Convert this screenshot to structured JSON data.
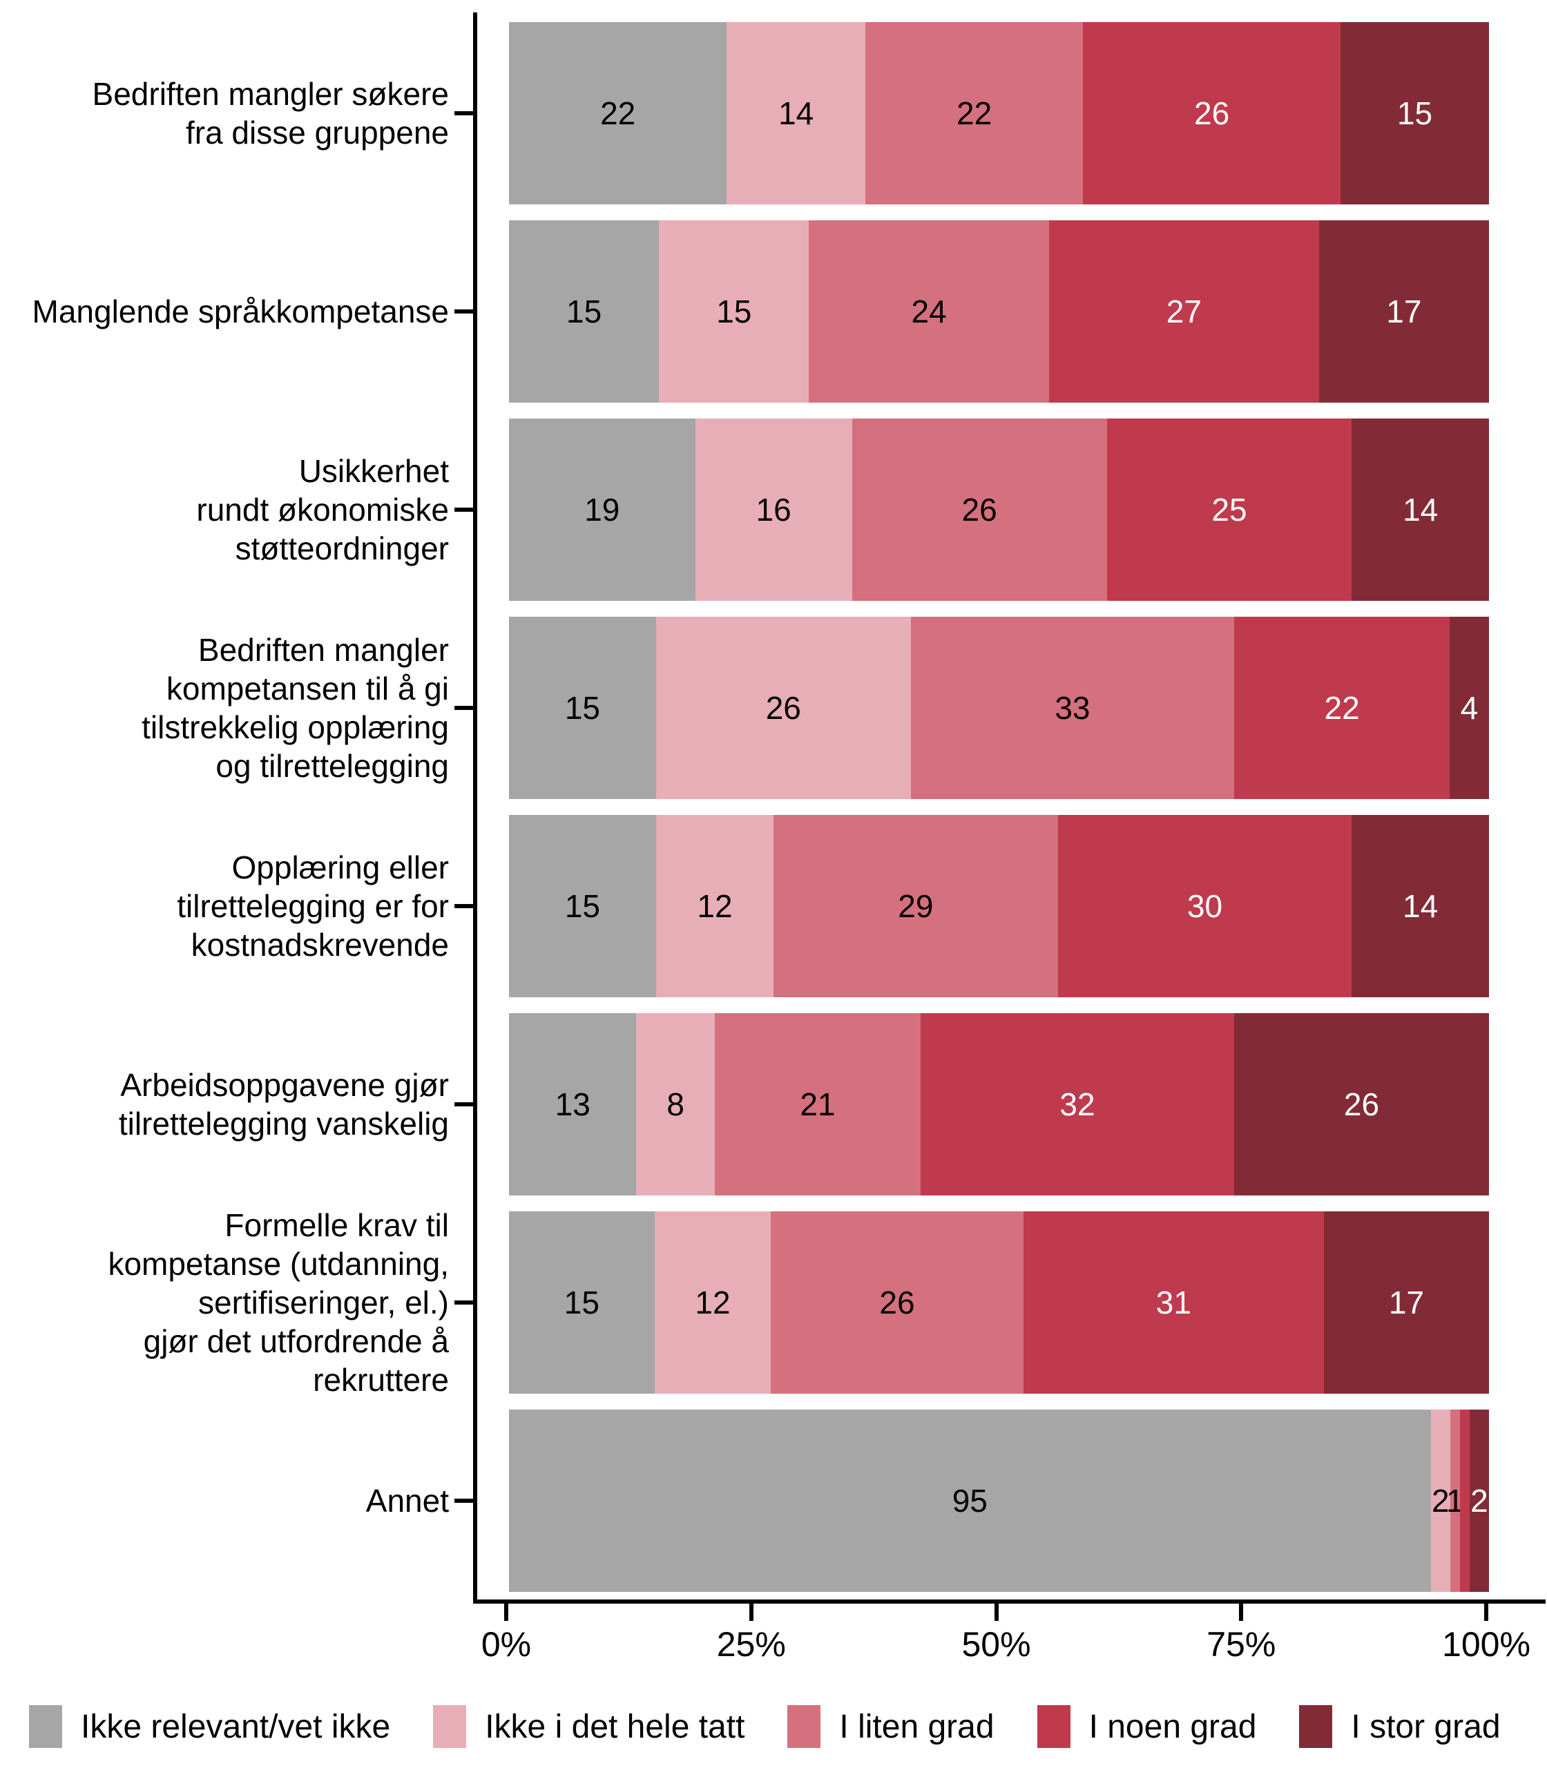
{
  "chart_data": {
    "type": "bar",
    "orientation": "horizontal-stacked",
    "unit": "percent",
    "title": "",
    "xlabel": "",
    "ylabel": "",
    "xlim": [
      0,
      100
    ],
    "grid": false,
    "x_axis_ticks": [
      {
        "label": "0%",
        "value": 0
      },
      {
        "label": "25%",
        "value": 25
      },
      {
        "label": "50%",
        "value": 50
      },
      {
        "label": "75%",
        "value": 75
      },
      {
        "label": "100%",
        "value": 100
      }
    ],
    "legend": {
      "position": "bottom",
      "entries": [
        {
          "label": "Ikke relevant/vet ikke",
          "color": "#A6A6A6",
          "text_color": "#000000"
        },
        {
          "label": "Ikke i det hele tatt",
          "color": "#E8AEB7",
          "text_color": "#000000"
        },
        {
          "label": "I liten grad",
          "color": "#D5707E",
          "text_color": "#000000"
        },
        {
          "label": "I noen grad",
          "color": "#C03A4D",
          "text_color": "#ffffff"
        },
        {
          "label": "I stor grad",
          "color": "#822B36",
          "text_color": "#ffffff"
        }
      ]
    },
    "categories": [
      "Bedriften mangler søkere\nfra disse gruppene",
      "Manglende språkkompetanse",
      "Usikkerhet\nrundt økonomiske\nstøtteordninger",
      "Bedriften mangler\nkompetansen til å gi\ntilstrekkelig opplæring\nog tilrettelegging",
      "Opplæring eller\ntilrettelegging er for\nkostnadskrevende",
      "Arbeidsoppgavene gjør\ntilrettelegging vanskelig",
      "Formelle krav til\nkompetanse (utdanning,\nsertifiseringer, el.)\ngjør det utfordrende å\nrekruttere",
      "Annet"
    ],
    "rows": [
      {
        "values": [
          22,
          14,
          22,
          26,
          15
        ],
        "labels": [
          "22",
          "14",
          "22",
          "26",
          "15"
        ]
      },
      {
        "values": [
          15,
          15,
          24,
          27,
          17
        ],
        "labels": [
          "15",
          "15",
          "24",
          "27",
          "17"
        ]
      },
      {
        "values": [
          19,
          16,
          26,
          25,
          14
        ],
        "labels": [
          "19",
          "16",
          "26",
          "25",
          "14"
        ]
      },
      {
        "values": [
          15,
          26,
          33,
          22,
          4
        ],
        "labels": [
          "15",
          "26",
          "33",
          "22",
          "4"
        ]
      },
      {
        "values": [
          15,
          12,
          29,
          30,
          14
        ],
        "labels": [
          "15",
          "12",
          "29",
          "30",
          "14"
        ]
      },
      {
        "values": [
          13,
          8,
          21,
          32,
          26
        ],
        "labels": [
          "13",
          "8",
          "21",
          "32",
          "26"
        ]
      },
      {
        "values": [
          15,
          12,
          26,
          31,
          17
        ],
        "labels": [
          "15",
          "12",
          "26",
          "31",
          "17"
        ]
      },
      {
        "values": [
          95,
          2,
          1,
          1,
          2
        ],
        "labels": [
          "95",
          "2",
          "1",
          "",
          "2"
        ]
      }
    ]
  }
}
